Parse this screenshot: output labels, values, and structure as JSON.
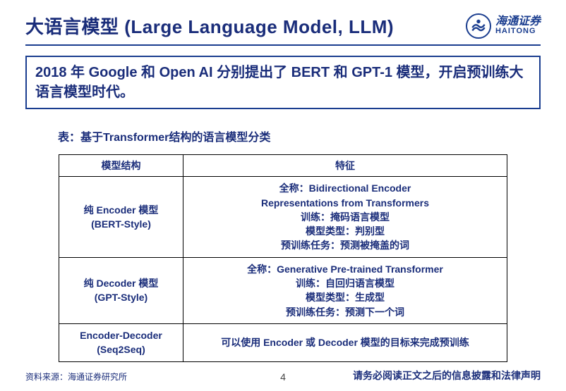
{
  "header": {
    "title": "大语言模型 (Large  Language Model,  LLM)",
    "logo_cn": "海通证券",
    "logo_en": "HAITONG"
  },
  "callout": "2018 年 Google 和 Open AI 分别提出了 BERT 和 GPT-1 模型，开启预训练大语言模型时代。",
  "table": {
    "caption": "表：基于Transformer结构的语言模型分类",
    "columns": [
      "模型结构",
      "特征"
    ],
    "rows": [
      {
        "structure": "纯 Encoder 模型\n(BERT-Style)",
        "feature": "全称：Bidirectional Encoder\nRepresentations from Transformers\n训练：掩码语言模型\n模型类型：判别型\n预训练任务：预测被掩盖的词"
      },
      {
        "structure": "纯 Decoder 模型\n(GPT-Style)",
        "feature": "全称：Generative Pre-trained Transformer\n训练：自回归语言模型\n模型类型：生成型\n预训练任务：预测下一个词"
      },
      {
        "structure": "Encoder-Decoder\n(Seq2Seq)",
        "feature": "可以使用 Encoder 或 Decoder 模型的目标来完成预训练"
      }
    ]
  },
  "footer": {
    "source": "资料来源：海通证券研究所",
    "page": "4",
    "disclaimer": "请务必阅读正文之后的信息披露和法律声明"
  },
  "colors": {
    "brand": "#1a3d8f",
    "text": "#1a2d7a",
    "border": "#000000"
  }
}
